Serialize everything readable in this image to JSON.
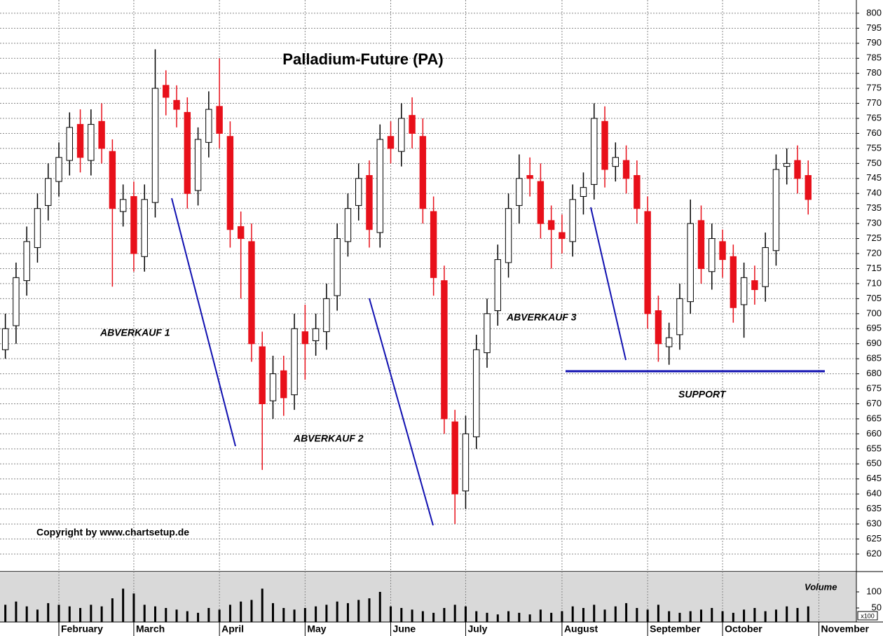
{
  "chart_data": {
    "type": "candlestick",
    "title": "Palladium-Future (PA)",
    "copyright": "Copyright by www.chartsetup.de",
    "annotations": [
      "ABVERKAUF 1",
      "ABVERKAUF 2",
      "ABVERKAUF 3",
      "SUPPORT"
    ],
    "volume_label": "Volume",
    "volume_unit": "x100",
    "up_color": "#ffffff",
    "down_color": "#e8101a",
    "grid": true,
    "xlim": [
      -0.5,
      79.5
    ],
    "xticks": [
      {
        "value": 5,
        "label": "February"
      },
      {
        "value": 12,
        "label": "March"
      },
      {
        "value": 20,
        "label": "April"
      },
      {
        "value": 28,
        "label": "May"
      },
      {
        "value": 36,
        "label": "June"
      },
      {
        "value": 43,
        "label": "July"
      },
      {
        "value": 52,
        "label": "August"
      },
      {
        "value": 60,
        "label": "September"
      },
      {
        "value": 67,
        "label": "October"
      },
      {
        "value": 76,
        "label": "November"
      }
    ],
    "ylim": [
      614.4,
      804.4
    ],
    "yticks": [
      620,
      625,
      630,
      635,
      640,
      645,
      650,
      655,
      660,
      665,
      670,
      675,
      680,
      685,
      690,
      695,
      700,
      705,
      710,
      715,
      720,
      725,
      730,
      735,
      740,
      745,
      750,
      755,
      760,
      765,
      770,
      775,
      780,
      785,
      790,
      795,
      800
    ],
    "volume_ylim": [
      0,
      150
    ],
    "volume_yticks": [
      50,
      100
    ],
    "open": [
      688,
      696,
      711,
      722,
      736,
      744,
      751,
      763,
      751,
      764,
      754,
      734,
      739,
      719,
      737,
      776,
      771,
      767,
      741,
      757,
      769,
      759,
      729,
      724,
      689,
      671,
      681,
      673,
      694,
      691,
      694,
      706,
      724,
      736,
      746,
      727,
      759,
      754,
      766,
      759,
      734,
      711,
      664,
      641,
      659,
      687,
      701,
      717,
      736,
      746,
      744,
      731,
      727,
      724,
      739,
      743,
      764,
      749,
      751,
      746,
      734,
      701,
      689,
      693,
      704,
      731,
      714,
      724,
      719,
      703,
      711,
      709,
      721,
      749,
      751,
      746
    ],
    "high": [
      700,
      717,
      729,
      740,
      750,
      757,
      767,
      768,
      768,
      770,
      758,
      743,
      744,
      743,
      788,
      781,
      776,
      772,
      762,
      774,
      785,
      764,
      734,
      730,
      694,
      686,
      686,
      700,
      703,
      700,
      710,
      730,
      740,
      750,
      751,
      763,
      764,
      770,
      772,
      765,
      739,
      716,
      668,
      666,
      693,
      705,
      723,
      740,
      753,
      752,
      750,
      736,
      733,
      743,
      747,
      770,
      769,
      757,
      756,
      751,
      739,
      706,
      697,
      710,
      738,
      736,
      730,
      728,
      723,
      717,
      716,
      727,
      753,
      755,
      756,
      751
    ],
    "low": [
      685,
      690,
      706,
      717,
      731,
      739,
      746,
      747,
      746,
      750,
      709,
      729,
      714,
      714,
      732,
      766,
      762,
      735,
      736,
      752,
      755,
      722,
      705,
      684,
      648,
      665,
      666,
      668,
      678,
      686,
      688,
      701,
      719,
      731,
      722,
      722,
      750,
      749,
      755,
      730,
      706,
      660,
      630,
      635,
      655,
      682,
      696,
      712,
      730,
      739,
      725,
      715,
      720,
      719,
      733,
      738,
      742,
      744,
      740,
      730,
      695,
      684,
      683,
      688,
      700,
      710,
      708,
      712,
      697,
      692,
      703,
      704,
      716,
      743,
      740,
      733
    ],
    "close": [
      695,
      712,
      724,
      735,
      745,
      752,
      762,
      752,
      763,
      755,
      735,
      738,
      720,
      738,
      775,
      772,
      768,
      740,
      758,
      768,
      760,
      728,
      725,
      690,
      670,
      680,
      672,
      695,
      690,
      695,
      705,
      725,
      735,
      745,
      728,
      758,
      755,
      765,
      760,
      735,
      712,
      665,
      640,
      660,
      688,
      700,
      718,
      735,
      745,
      745,
      730,
      728,
      725,
      738,
      742,
      765,
      748,
      752,
      745,
      735,
      700,
      690,
      692,
      705,
      730,
      715,
      725,
      718,
      702,
      712,
      708,
      722,
      748,
      750,
      745,
      738
    ],
    "volume": [
      60,
      70,
      55,
      45,
      65,
      60,
      55,
      50,
      60,
      55,
      80,
      110,
      95,
      60,
      55,
      50,
      45,
      40,
      35,
      50,
      45,
      60,
      70,
      75,
      110,
      65,
      50,
      45,
      50,
      55,
      60,
      70,
      65,
      75,
      80,
      100,
      55,
      50,
      45,
      40,
      35,
      50,
      60,
      55,
      40,
      35,
      30,
      40,
      35,
      30,
      45,
      35,
      40,
      55,
      50,
      60,
      45,
      55,
      65,
      50,
      45,
      60,
      40,
      35,
      40,
      45,
      50,
      40,
      35,
      45,
      50,
      40,
      45,
      55,
      50,
      55
    ]
  }
}
